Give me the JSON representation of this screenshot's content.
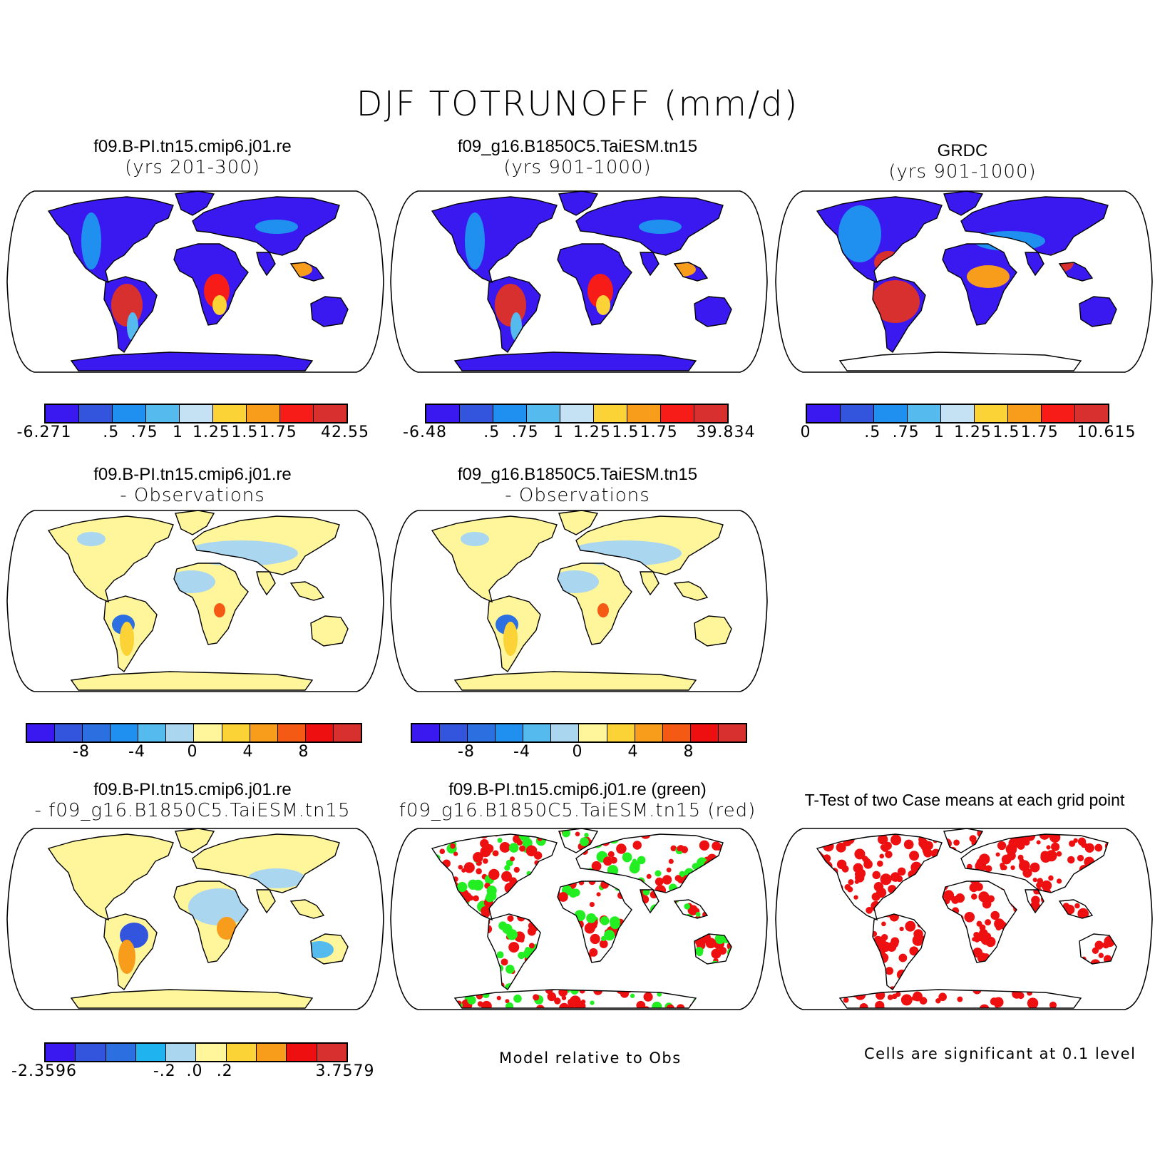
{
  "title": "DJF TOTRUNOFF (mm/d)",
  "colors": {
    "seq": [
      "#3a18f0",
      "#3355de",
      "#1f8ff0",
      "#55bbee",
      "#c4e2f4",
      "#fbd336",
      "#f89c1c",
      "#f71c18",
      "#d8302f"
    ],
    "diff": [
      "#3a18f0",
      "#3355de",
      "#2b6fe0",
      "#1f8ff0",
      "#55bbee",
      "#abd6f0",
      "#fff59a",
      "#fbd336",
      "#f89c1c",
      "#f55a14",
      "#ee1010",
      "#d8302f"
    ],
    "diff2": [
      "#3a18f0",
      "#3355de",
      "#2b6fe0",
      "#1fb4f0",
      "#abd6f0",
      "#fff59a",
      "#fbd336",
      "#f89c1c",
      "#ee1010",
      "#d8302f"
    ],
    "sig_red": "#ee1010",
    "sig_green": "#22ee22"
  },
  "panels": {
    "p1": {
      "line1": "f09.B-PI.tn15.cmip6.j01.re",
      "line2": "(yrs 201-300)",
      "cbar_labels": [
        "-6.271",
        ".5",
        ".75",
        "1",
        "1.25",
        "1.5",
        "1.75",
        "42.55"
      ]
    },
    "p2": {
      "line1": "f09_g16.B1850C5.TaiESM.tn15",
      "line2": "(yrs 901-1000)",
      "cbar_labels": [
        "-6.48",
        ".5",
        ".75",
        "1",
        "1.25",
        "1.5",
        "1.75",
        "39.834"
      ]
    },
    "p3": {
      "line1": "GRDC",
      "line2": "(yrs 901-1000)",
      "cbar_labels": [
        "0",
        ".5",
        ".75",
        "1",
        "1.25",
        "1.5",
        "1.75",
        "10.615"
      ]
    },
    "p4": {
      "line1": "f09.B-PI.tn15.cmip6.j01.re",
      "line2": "- Observations",
      "cbar_labels": [
        "-8",
        "-4",
        "0",
        "4",
        "8"
      ]
    },
    "p5": {
      "line1": "f09_g16.B1850C5.TaiESM.tn15",
      "line2": "- Observations",
      "cbar_labels": [
        "-8",
        "-4",
        "0",
        "4",
        "8"
      ]
    },
    "p7": {
      "line1": "f09.B-PI.tn15.cmip6.j01.re",
      "line2": "- f09_g16.B1850C5.TaiESM.tn15",
      "cbar_labels": [
        "-2.3596",
        "-.2",
        ".0",
        ".2",
        "3.7579"
      ]
    },
    "p8": {
      "line1": "f09.B-PI.tn15.cmip6.j01.re (green)",
      "line2": "f09_g16.B1850C5.TaiESM.tn15 (red)",
      "note": "Model relative to Obs"
    },
    "p9": {
      "line1": "T-Test of two Case means at each grid point",
      "note": "Cells are significant at 0.1 level"
    }
  }
}
